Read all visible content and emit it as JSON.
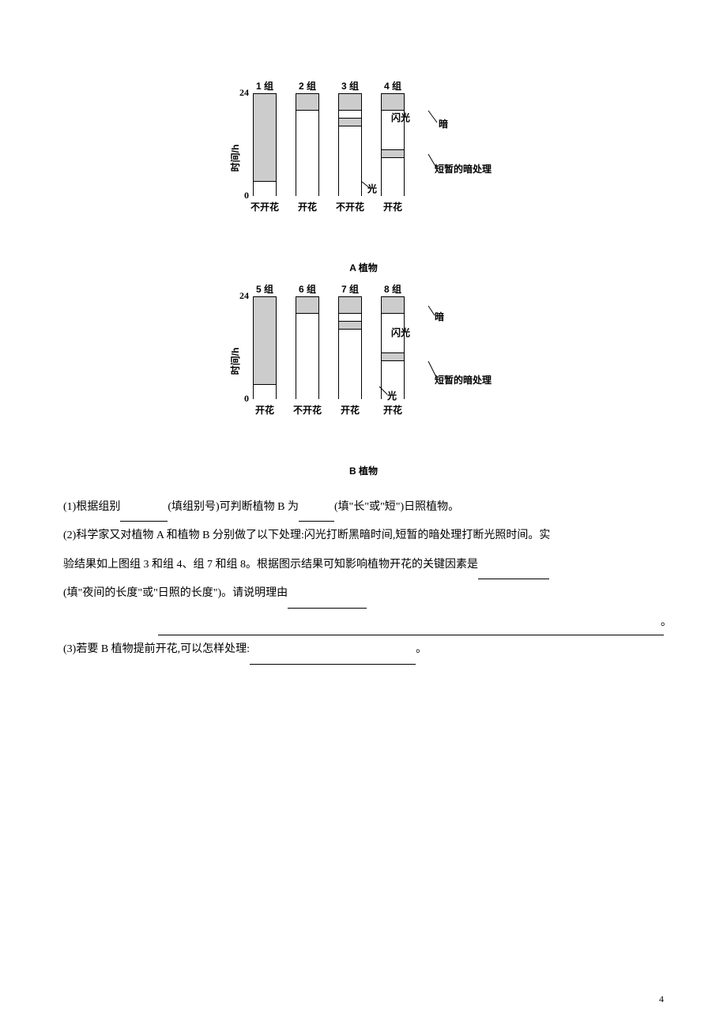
{
  "chartA": {
    "y_axis_label": "时间/h",
    "y_ticks": [
      "0",
      "24"
    ],
    "groups": [
      {
        "label": "1 组",
        "segments": [
          {
            "type": "dark",
            "h": 110
          },
          {
            "type": "light",
            "h": 20
          }
        ],
        "result": "不开花"
      },
      {
        "label": "2 组",
        "segments": [
          {
            "type": "dark",
            "h": 20
          },
          {
            "type": "light",
            "h": 110
          }
        ],
        "result": "开花"
      },
      {
        "label": "3 组",
        "segments": [
          {
            "type": "dark",
            "h": 20
          },
          {
            "type": "flash",
            "h": 10
          },
          {
            "type": "dark",
            "h": 10
          },
          {
            "type": "light",
            "h": 90
          }
        ],
        "result": "不开花"
      },
      {
        "label": "4 组",
        "segments": [
          {
            "type": "dark",
            "h": 20
          },
          {
            "type": "light",
            "h": 50
          },
          {
            "type": "brief-dark",
            "h": 10
          },
          {
            "type": "light",
            "h": 50
          }
        ],
        "result": "开花"
      }
    ],
    "plant_title": "A 植物",
    "annotations": {
      "flash": "闪光",
      "dark": "暗",
      "light": "光",
      "brief_dark": "短暂的暗处理"
    }
  },
  "chartB": {
    "y_axis_label": "时间/h",
    "y_ticks": [
      "0",
      "24"
    ],
    "groups": [
      {
        "label": "5 组",
        "segments": [
          {
            "type": "dark",
            "h": 110
          },
          {
            "type": "light",
            "h": 20
          }
        ],
        "result": "开花"
      },
      {
        "label": "6 组",
        "segments": [
          {
            "type": "dark",
            "h": 20
          },
          {
            "type": "light",
            "h": 110
          }
        ],
        "result": "不开花"
      },
      {
        "label": "7 组",
        "segments": [
          {
            "type": "dark",
            "h": 20
          },
          {
            "type": "flash",
            "h": 10
          },
          {
            "type": "dark",
            "h": 10
          },
          {
            "type": "light",
            "h": 90
          }
        ],
        "result": "开花"
      },
      {
        "label": "8 组",
        "segments": [
          {
            "type": "dark",
            "h": 20
          },
          {
            "type": "light",
            "h": 50
          },
          {
            "type": "brief-dark",
            "h": 10
          },
          {
            "type": "light",
            "h": 50
          }
        ],
        "result": "开花"
      }
    ],
    "plant_title": "B 植物",
    "annotations": {
      "flash": "闪光",
      "dark": "暗",
      "light": "光",
      "brief_dark": "短暂的暗处理"
    }
  },
  "questions": {
    "q1_pre": "(1)根据组别",
    "q1_mid": "(填组别号)可判断植物 B 为",
    "q1_post": "(填\"长\"或\"短\")日照植物。",
    "q2_line1a": "(2)科学家又对植物 A 和植物 B 分别做了以下处理:闪光打断黑暗时间,短暂的暗处理打断光照时间。实",
    "q2_line1b": "验结果如上图组 3 和组 4、组 7 和组 8。根据图示结果可知影响植物开花的关键因素是",
    "q2_line2": "(填\"夜间的长度\"或\"日照的长度\")。请说明理由",
    "q2_end": "。",
    "q3_pre": "(3)若要 B 植物提前开花,可以怎样处理:",
    "q3_post": "。"
  },
  "page_number": "4",
  "colors": {
    "dark_bar": "#cccccc",
    "light_bar": "#ffffff",
    "text": "#000000",
    "bg": "#ffffff"
  }
}
